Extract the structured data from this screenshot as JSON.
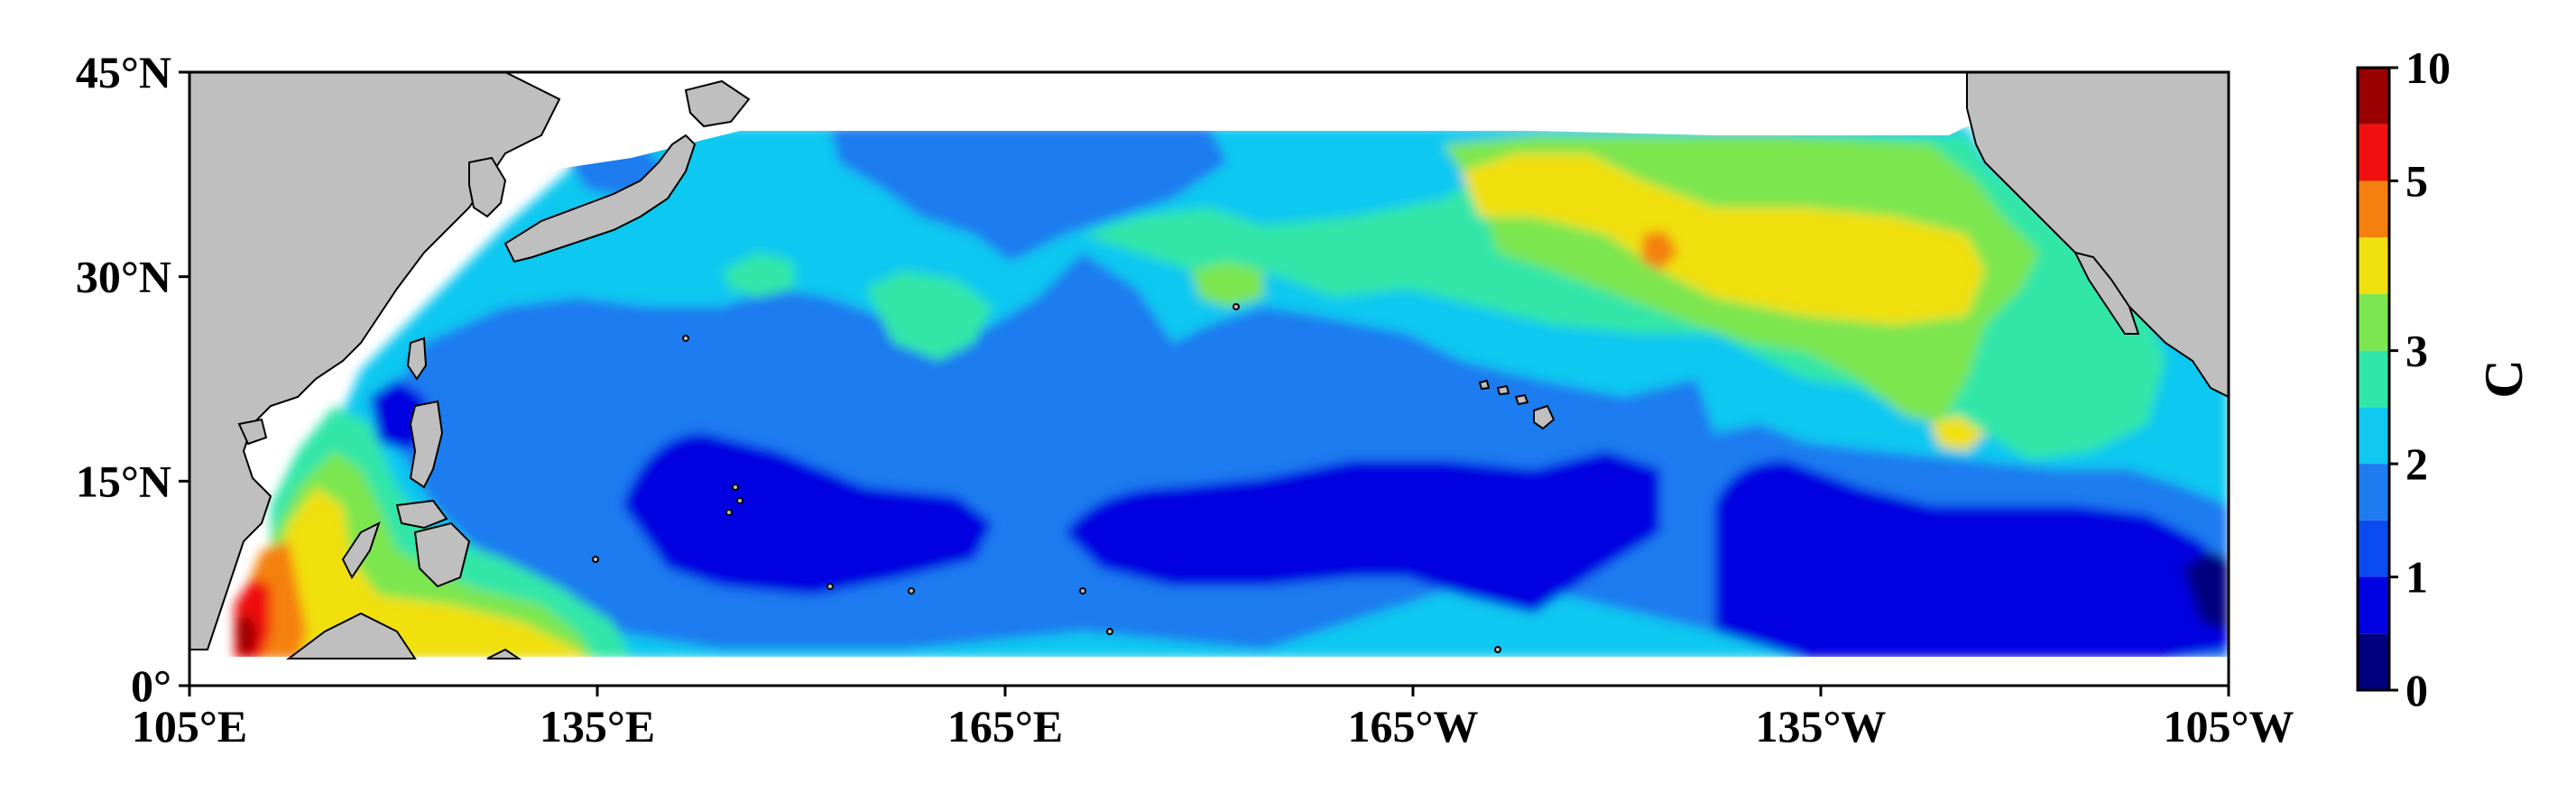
{
  "map": {
    "lon_ticks": [
      "105°E",
      "135°E",
      "165°E",
      "165°W",
      "135°W",
      "105°W"
    ],
    "lat_ticks": [
      "0°",
      "15°N",
      "30°N",
      "45°N"
    ],
    "extent": {
      "lon_min": 105,
      "lon_max": 255,
      "lat_min": 0,
      "lat_max": 45
    },
    "land_color": "#bfbfbf",
    "coast_color": "#000000"
  },
  "colorbar": {
    "title": "C",
    "tick_labels": [
      "0",
      "1",
      "2",
      "3",
      "5",
      "10"
    ],
    "bins": [
      {
        "color": "#00007f"
      },
      {
        "color": "#0000e0"
      },
      {
        "color": "#0a4cf0"
      },
      {
        "color": "#1e7cf0"
      },
      {
        "color": "#10c8f0"
      },
      {
        "color": "#30e6a8"
      },
      {
        "color": "#7ce650"
      },
      {
        "color": "#f0e010"
      },
      {
        "color": "#f48010"
      },
      {
        "color": "#f01010"
      },
      {
        "color": "#990000"
      }
    ]
  }
}
